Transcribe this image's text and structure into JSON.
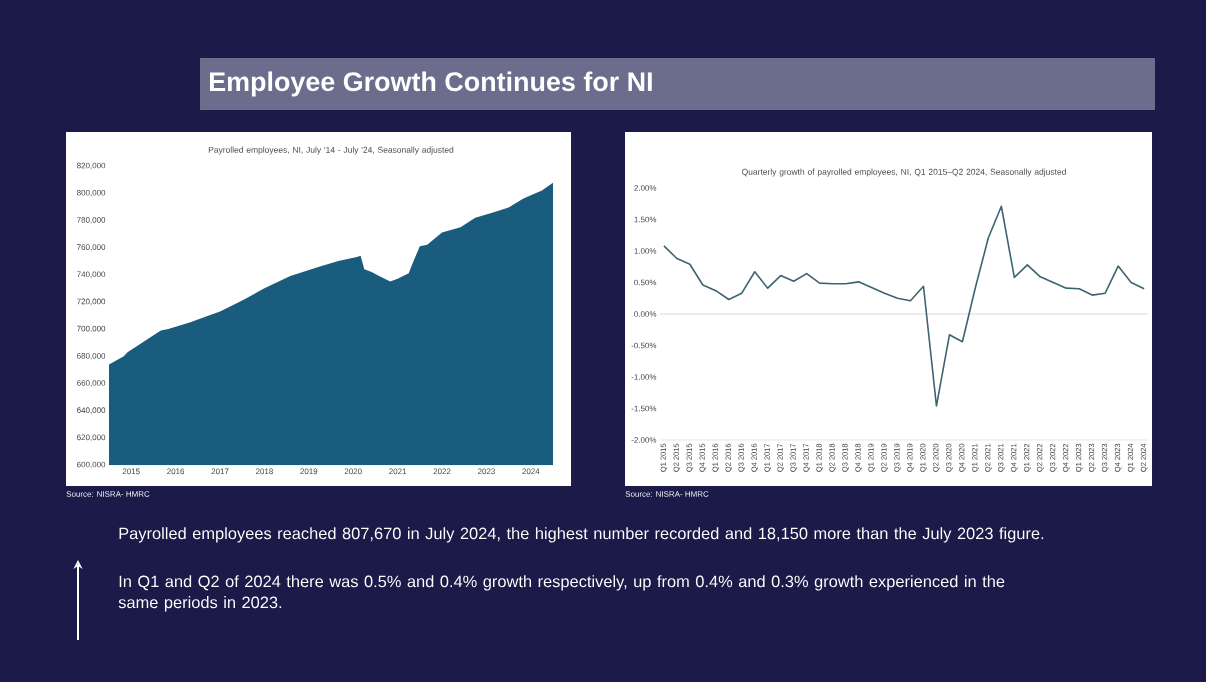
{
  "chart_data": [
    {
      "type": "area",
      "title": "Payrolled employees, NI, July '14 - July '24, Seasonally adjusted",
      "x": [
        "2014-07",
        "2014-11",
        "2014-12",
        "2015-09",
        "2015-11",
        "2016-05",
        "2016-07",
        "2017-01",
        "2017-07",
        "2018-01",
        "2018-08",
        "2019-04",
        "2019-09",
        "2020-02",
        "2020-03",
        "2020-04",
        "2020-06",
        "2020-08",
        "2020-11",
        "2021-01",
        "2021-04",
        "2021-05",
        "2021-07",
        "2021-09",
        "2022-01",
        "2022-06",
        "2022-10",
        "2023-03",
        "2023-07",
        "2023-11",
        "2024-04",
        "2024-07"
      ],
      "series": [
        {
          "color": "#1a5c7e",
          "values": [
            674000,
            680000,
            683000,
            699000,
            700000,
            705000,
            707000,
            713000,
            721000,
            730000,
            739000,
            746000,
            750000,
            753000,
            754000,
            744000,
            742000,
            739000,
            735000,
            737000,
            741000,
            748000,
            761000,
            762000,
            771000,
            775000,
            782000,
            786000,
            789520,
            796000,
            802000,
            807670
          ]
        }
      ],
      "xlim": [
        "2014-07",
        "2024-07"
      ],
      "xticks": [
        {
          "value": "2015-01",
          "label": "2015"
        },
        {
          "value": "2016-01",
          "label": "2016"
        },
        {
          "value": "2017-01",
          "label": "2017"
        },
        {
          "value": "2018-01",
          "label": "2018"
        },
        {
          "value": "2019-01",
          "label": "2019"
        },
        {
          "value": "2020-01",
          "label": "2020"
        },
        {
          "value": "2021-01",
          "label": "2021"
        },
        {
          "value": "2022-01",
          "label": "2022"
        },
        {
          "value": "2023-01",
          "label": "2023"
        },
        {
          "value": "2024-01",
          "label": "2024"
        }
      ],
      "ylim": [
        600000,
        820000
      ],
      "yticks": [
        {
          "value": 600000,
          "label": "600,000"
        },
        {
          "value": 620000,
          "label": "620,000"
        },
        {
          "value": 640000,
          "label": "640,000"
        },
        {
          "value": 660000,
          "label": "660,000"
        },
        {
          "value": 680000,
          "label": "680,000"
        },
        {
          "value": 700000,
          "label": "700,000"
        },
        {
          "value": 720000,
          "label": "720,000"
        },
        {
          "value": 740000,
          "label": "740,000"
        },
        {
          "value": 760000,
          "label": "760,000"
        },
        {
          "value": 780000,
          "label": "780,000"
        },
        {
          "value": 800000,
          "label": "800,000"
        },
        {
          "value": 820000,
          "label": "820,000"
        }
      ],
      "annotations": [
        "Source: NISRA- HMRC"
      ]
    },
    {
      "type": "line",
      "title": "Quarterly growth of payrolled employees, NI, Q1 2015–Q2 2024, Seasonally adjusted",
      "categories": [
        "Q1 2015",
        "Q2 2015",
        "Q3 2015",
        "Q4 2015",
        "Q1 2016",
        "Q2 2016",
        "Q3 2016",
        "Q4 2016",
        "Q1 2017",
        "Q2 2017",
        "Q3 2017",
        "Q4 2017",
        "Q1 2018",
        "Q2 2018",
        "Q3 2018",
        "Q4 2018",
        "Q1 2019",
        "Q2 2019",
        "Q3 2019",
        "Q4 2019",
        "Q1 2020",
        "Q2 2020",
        "Q3 2020",
        "Q4 2020",
        "Q1 2021",
        "Q2 2021",
        "Q3 2021",
        "Q4 2021",
        "Q1 2022",
        "Q2 2022",
        "Q3 2022",
        "Q4 2022",
        "Q1 2023",
        "Q2 2023",
        "Q3 2023",
        "Q4 2023",
        "Q1 2024",
        "Q2 2024"
      ],
      "series": [
        {
          "color": "#3d6470",
          "values": [
            1.08,
            0.88,
            0.79,
            0.46,
            0.37,
            0.23,
            0.33,
            0.67,
            0.41,
            0.61,
            0.52,
            0.64,
            0.49,
            0.48,
            0.48,
            0.51,
            0.42,
            0.33,
            0.25,
            0.21,
            0.44,
            -1.46,
            -0.33,
            -0.44,
            0.42,
            1.21,
            1.71,
            0.58,
            0.78,
            0.59,
            0.5,
            0.41,
            0.4,
            0.3,
            0.33,
            0.76,
            0.5,
            0.4
          ]
        }
      ],
      "ylim": [
        -2,
        2
      ],
      "yticks": [
        {
          "value": -2,
          "label": "-2.00%"
        },
        {
          "value": -1.5,
          "label": "-1.50%"
        },
        {
          "value": -1,
          "label": "-1.00%"
        },
        {
          "value": -0.5,
          "label": "-0.50%"
        },
        {
          "value": 0,
          "label": "0.00%"
        },
        {
          "value": 0.5,
          "label": "0.50%"
        },
        {
          "value": 1,
          "label": "1.00%"
        },
        {
          "value": 1.5,
          "label": "1.50%"
        },
        {
          "value": 2,
          "label": "2.00%"
        }
      ],
      "ref_lines": [
        {
          "axis": "y",
          "value": 0,
          "color": "#d9d9d9"
        }
      ],
      "annotations": [
        "Source: NISRA- HMRC"
      ]
    },
    {
      "type": "other",
      "title": "Employee Growth Continues for NI",
      "annotations": [
        "Payrolled employees reached 807,670 in July 2024, the highest number recorded and 18,150 more than the July 2023 figure.",
        "In Q1 and Q2 of 2024 there was 0.5% and 0.4% growth respectively, up from 0.4% and 0.3% growth experienced in the same periods in 2023."
      ]
    }
  ]
}
